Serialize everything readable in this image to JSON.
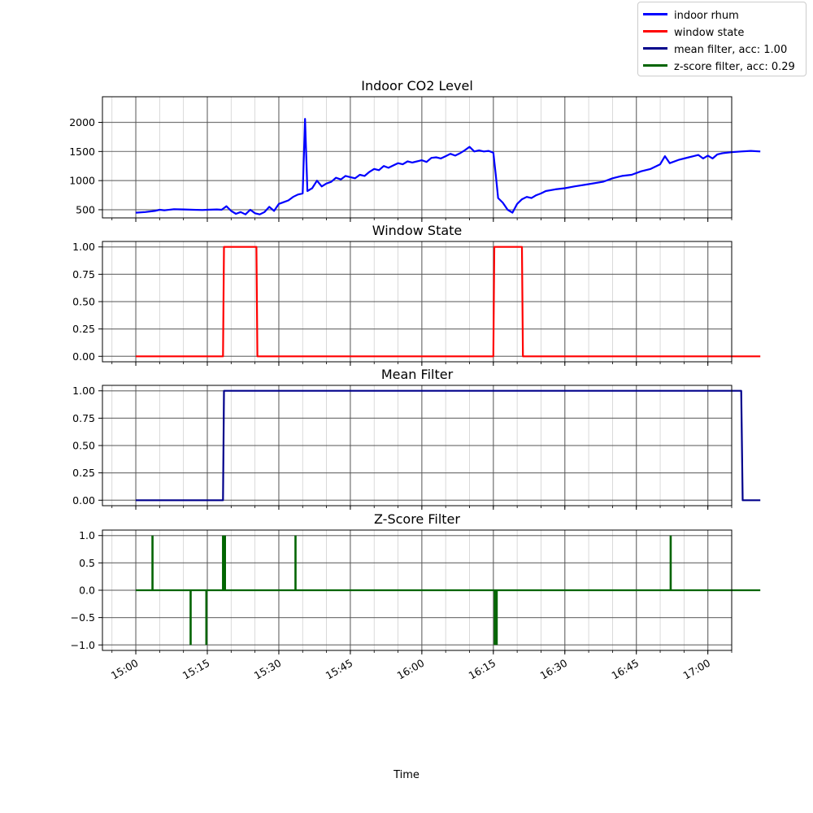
{
  "legend": {
    "items": [
      {
        "label": "indoor rhum",
        "color": "#0000ff"
      },
      {
        "label": "window state",
        "color": "#ff0000"
      },
      {
        "label": "mean filter, acc: 1.00",
        "color": "#00008b"
      },
      {
        "label": "z-score filter, acc: 0.29",
        "color": "#006400"
      }
    ]
  },
  "xlabel": "Time",
  "chart_data": [
    {
      "type": "line",
      "title": "Indoor CO2 Level",
      "series_key": "indoor rhum",
      "color": "#0000ff",
      "xlim": [
        "14:53",
        "17:05"
      ],
      "ylim": [
        360,
        2440
      ],
      "yticks": [
        500,
        1000,
        1500,
        2000
      ],
      "yticklabels": [
        "500",
        "1000",
        "1500",
        "2000"
      ],
      "grid": true,
      "points": [
        [
          "15:00",
          450
        ],
        [
          "15:02",
          460
        ],
        [
          "15:04",
          480
        ],
        [
          "15:05",
          500
        ],
        [
          "15:06",
          490
        ],
        [
          "15:08",
          510
        ],
        [
          "15:10",
          505
        ],
        [
          "15:12",
          500
        ],
        [
          "15:14",
          495
        ],
        [
          "15:15",
          500
        ],
        [
          "15:17",
          505
        ],
        [
          "15:18",
          500
        ],
        [
          "15:19",
          560
        ],
        [
          "15:20",
          480
        ],
        [
          "15:21",
          430
        ],
        [
          "15:22",
          460
        ],
        [
          "15:23",
          420
        ],
        [
          "15:24",
          500
        ],
        [
          "15:25",
          440
        ],
        [
          "15:26",
          420
        ],
        [
          "15:27",
          460
        ],
        [
          "15:28",
          550
        ],
        [
          "15:29",
          480
        ],
        [
          "15:30",
          600
        ],
        [
          "15:31",
          630
        ],
        [
          "15:32",
          660
        ],
        [
          "15:33",
          720
        ],
        [
          "15:34",
          760
        ],
        [
          "15:35",
          780
        ],
        [
          "15:35.5",
          2060
        ],
        [
          "15:36",
          820
        ],
        [
          "15:37",
          870
        ],
        [
          "15:38",
          1000
        ],
        [
          "15:39",
          900
        ],
        [
          "15:40",
          950
        ],
        [
          "15:41",
          980
        ],
        [
          "15:42",
          1050
        ],
        [
          "15:43",
          1020
        ],
        [
          "15:44",
          1080
        ],
        [
          "15:45",
          1060
        ],
        [
          "15:46",
          1040
        ],
        [
          "15:47",
          1100
        ],
        [
          "15:48",
          1080
        ],
        [
          "15:49",
          1150
        ],
        [
          "15:50",
          1200
        ],
        [
          "15:51",
          1180
        ],
        [
          "15:52",
          1250
        ],
        [
          "15:53",
          1220
        ],
        [
          "15:54",
          1260
        ],
        [
          "15:55",
          1300
        ],
        [
          "15:56",
          1280
        ],
        [
          "15:57",
          1330
        ],
        [
          "15:58",
          1310
        ],
        [
          "16:00",
          1350
        ],
        [
          "16:01",
          1320
        ],
        [
          "16:02",
          1390
        ],
        [
          "16:03",
          1400
        ],
        [
          "16:04",
          1380
        ],
        [
          "16:05",
          1420
        ],
        [
          "16:06",
          1460
        ],
        [
          "16:07",
          1430
        ],
        [
          "16:08",
          1470
        ],
        [
          "16:09",
          1520
        ],
        [
          "16:10",
          1580
        ],
        [
          "16:11",
          1500
        ],
        [
          "16:12",
          1520
        ],
        [
          "16:13",
          1500
        ],
        [
          "16:14",
          1510
        ],
        [
          "16:15",
          1480
        ],
        [
          "16:15.5",
          1100
        ],
        [
          "16:16",
          700
        ],
        [
          "16:17",
          620
        ],
        [
          "16:18",
          500
        ],
        [
          "16:19",
          450
        ],
        [
          "16:20",
          600
        ],
        [
          "16:21",
          680
        ],
        [
          "16:22",
          720
        ],
        [
          "16:23",
          700
        ],
        [
          "16:24",
          750
        ],
        [
          "16:25",
          780
        ],
        [
          "16:26",
          820
        ],
        [
          "16:28",
          850
        ],
        [
          "16:30",
          870
        ],
        [
          "16:32",
          900
        ],
        [
          "16:35",
          940
        ],
        [
          "16:38",
          980
        ],
        [
          "16:40",
          1040
        ],
        [
          "16:42",
          1080
        ],
        [
          "16:44",
          1100
        ],
        [
          "16:46",
          1160
        ],
        [
          "16:48",
          1200
        ],
        [
          "16:50",
          1280
        ],
        [
          "16:51",
          1420
        ],
        [
          "16:52",
          1300
        ],
        [
          "16:54",
          1360
        ],
        [
          "16:56",
          1400
        ],
        [
          "16:57",
          1420
        ],
        [
          "16:58",
          1440
        ],
        [
          "16:59",
          1380
        ],
        [
          "17:00",
          1430
        ],
        [
          "17:01",
          1380
        ],
        [
          "17:02",
          1450
        ],
        [
          "17:03",
          1470
        ],
        [
          "17:05",
          1490
        ],
        [
          "17:07",
          1500
        ],
        [
          "17:09",
          1510
        ],
        [
          "17:11",
          1500
        ]
      ]
    },
    {
      "type": "line",
      "title": "Window State",
      "series_key": "window state",
      "color": "#ff0000",
      "yticks": [
        0.0,
        0.25,
        0.5,
        0.75,
        1.0
      ],
      "yticklabels": [
        "0.00",
        "0.25",
        "0.50",
        "0.75",
        "1.00"
      ],
      "ylim": [
        -0.05,
        1.05
      ],
      "grid": true,
      "points": [
        [
          "15:00",
          0
        ],
        [
          "15:18.3",
          0
        ],
        [
          "15:18.5",
          1
        ],
        [
          "15:25.3",
          1
        ],
        [
          "15:25.5",
          0
        ],
        [
          "16:15",
          0
        ],
        [
          "16:15.2",
          1
        ],
        [
          "16:21",
          1
        ],
        [
          "16:21.2",
          0
        ],
        [
          "17:11",
          0
        ]
      ]
    },
    {
      "type": "line",
      "title": "Mean Filter",
      "series_key": "mean filter, acc: 1.00",
      "color": "#00008b",
      "yticks": [
        0.0,
        0.25,
        0.5,
        0.75,
        1.0
      ],
      "yticklabels": [
        "0.00",
        "0.25",
        "0.50",
        "0.75",
        "1.00"
      ],
      "ylim": [
        -0.05,
        1.05
      ],
      "grid": true,
      "points": [
        [
          "15:00",
          0
        ],
        [
          "15:18.3",
          0
        ],
        [
          "15:18.5",
          1
        ],
        [
          "17:07",
          1
        ],
        [
          "17:07.3",
          0
        ],
        [
          "17:11",
          0
        ]
      ]
    },
    {
      "type": "line",
      "title": "Z-Score Filter",
      "series_key": "z-score filter, acc: 0.29",
      "color": "#006400",
      "yticks": [
        -1.0,
        -0.5,
        0.0,
        0.5,
        1.0
      ],
      "yticklabels": [
        "−1.0",
        "−0.5",
        "0.0",
        "0.5",
        "1.0"
      ],
      "ylim": [
        -1.1,
        1.1
      ],
      "grid": true,
      "xticks": [
        "15:00",
        "15:15",
        "15:30",
        "15:45",
        "16:00",
        "16:15",
        "16:30",
        "16:45",
        "17:00"
      ],
      "spikes": [
        {
          "t": "15:03.5",
          "v": 1
        },
        {
          "t": "15:11.5",
          "v": -1
        },
        {
          "t": "15:14.8",
          "v": -1
        },
        {
          "t": "15:18.3",
          "v": 1
        },
        {
          "t": "15:18.7",
          "v": 1
        },
        {
          "t": "15:33.5",
          "v": 1
        },
        {
          "t": "16:15.3",
          "v": -1
        },
        {
          "t": "16:15.7",
          "v": -1
        },
        {
          "t": "16:52.2",
          "v": 1
        }
      ],
      "baseline_range": [
        "15:00",
        "17:11"
      ]
    }
  ]
}
